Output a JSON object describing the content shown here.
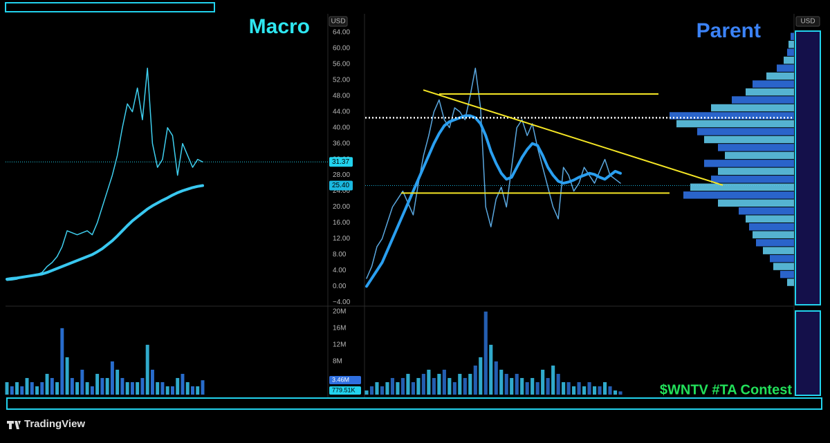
{
  "chart_data": [
    {
      "type": "line",
      "title": "Macro",
      "title_color": "#2ee6f0",
      "currency": "USD",
      "categories": [
        null,
        null,
        null,
        null,
        null,
        null,
        null,
        null,
        null,
        null,
        null,
        null,
        null,
        null,
        null,
        null,
        null,
        null,
        null,
        null,
        null,
        null,
        null,
        null,
        null,
        null,
        null,
        null,
        null,
        null,
        null,
        null,
        null,
        null,
        null,
        null,
        null,
        null,
        null,
        null
      ],
      "series": [
        {
          "color": "#3fd0f0",
          "values": [
            1.5,
            1.6,
            1.8,
            2.2,
            2.5,
            2.8,
            3.0,
            3.5,
            5,
            6,
            7.5,
            10,
            14,
            13.5,
            13,
            13.5,
            14,
            13,
            16,
            20,
            24,
            28,
            33,
            40,
            46,
            44,
            50,
            42,
            55,
            36,
            30,
            32,
            40,
            38,
            28,
            36,
            33,
            30,
            32,
            31.37
          ]
        },
        {
          "color": "#39c8f0",
          "values": [
            1.8,
            2,
            2.1,
            2.3,
            2.5,
            2.7,
            2.9,
            3.1,
            3.5,
            4,
            4.5,
            5,
            5.5,
            6,
            6.5,
            7,
            7.5,
            8,
            8.7,
            9.5,
            10.5,
            11.5,
            12.7,
            14,
            15.3,
            16.5,
            17.5,
            18.5,
            19.5,
            20.3,
            21,
            21.7,
            22.3,
            23,
            23.6,
            24.1,
            24.5,
            24.9,
            25.2,
            25.4
          ]
        }
      ],
      "volume": {
        "color": "#2f7ff0",
        "values": [
          3000000,
          2000000,
          3000000,
          2000000,
          4000000,
          3000000,
          2000000,
          3000000,
          5000000,
          4000000,
          3000000,
          16000000,
          9000000,
          4000000,
          3000000,
          6000000,
          3000000,
          2000000,
          5000000,
          4000000,
          4000000,
          8000000,
          6000000,
          4000000,
          3000000,
          3000000,
          3000000,
          4000000,
          12000000,
          6000000,
          3000000,
          3000000,
          2000000,
          2000000,
          4000000,
          5000000,
          3000000,
          2000000,
          2000000,
          3460000
        ]
      },
      "ylim": [
        -5,
        68.7
      ],
      "yticks": [
        {
          "value": 64,
          "label": "64.00"
        },
        {
          "value": 60,
          "label": "60.00"
        },
        {
          "value": 56,
          "label": "56.00"
        },
        {
          "value": 52,
          "label": "52.00"
        },
        {
          "value": 48,
          "label": "48.00"
        },
        {
          "value": 44,
          "label": "44.00"
        },
        {
          "value": 40,
          "label": "40.00"
        },
        {
          "value": 36,
          "label": "36.00"
        },
        {
          "value": 32,
          "label": "32.00"
        },
        {
          "value": 28,
          "label": "28.00"
        },
        {
          "value": 24,
          "label": "24.00"
        },
        {
          "value": 20,
          "label": "20.00"
        },
        {
          "value": 16,
          "label": "16.00"
        },
        {
          "value": 12,
          "label": "12.00"
        },
        {
          "value": 8,
          "label": "8.00"
        },
        {
          "value": 4,
          "label": "4.00"
        },
        {
          "value": 0,
          "label": "0.00"
        },
        {
          "value": -4,
          "label": "−4.00"
        }
      ],
      "y2lim": [
        0,
        21300000
      ],
      "y2ticks": [
        {
          "value": 20000000,
          "label": "20M"
        },
        {
          "value": 16000000,
          "label": "16M"
        },
        {
          "value": 12000000,
          "label": "12M"
        },
        {
          "value": 8000000,
          "label": "8M"
        }
      ],
      "price_labels": [
        {
          "value": 31.37,
          "color": "#22d3ee"
        },
        {
          "value": {
            "value": 25.4,
            "label": "25.40"
          },
          "color": "#1ab8e0"
        }
      ],
      "volume_labels": [
        {
          "value": {
            "value": 3460000,
            "label": "3.46M"
          },
          "color": "#2f6fe0"
        },
        {
          "value": {
            "value": 779510,
            "label": "779.51K"
          },
          "color": "#22d3ee"
        }
      ]
    },
    {
      "type": "line",
      "title": "Parent",
      "title_color": "#3b82f6",
      "currency": "USD",
      "annotation": "$WNTV #TA Contest",
      "annotation_color": "#22e05a",
      "categories": [
        null,
        null,
        null,
        null,
        null,
        null,
        null,
        null,
        null,
        null,
        null,
        null,
        null,
        null,
        null,
        null,
        null,
        null,
        null,
        null,
        null,
        null,
        null,
        null,
        null,
        null,
        null,
        null,
        null,
        null,
        null,
        null,
        null,
        null,
        null,
        null,
        null,
        null,
        null,
        null,
        null,
        null,
        null,
        null,
        null,
        null,
        null,
        null,
        null,
        null
      ],
      "series": [
        {
          "color": "#5aa8e0",
          "values": [
            2,
            5,
            10,
            12,
            16,
            20,
            22,
            24,
            21,
            18,
            26,
            33,
            38,
            44,
            47,
            42,
            40,
            45,
            44,
            42,
            48,
            55,
            45,
            20,
            15,
            22,
            25,
            20,
            30,
            40,
            42,
            38,
            41,
            35,
            30,
            25,
            20,
            17,
            30,
            28,
            24,
            26,
            30,
            28,
            26,
            29,
            32,
            28,
            27,
            26
          ]
        },
        {
          "color": "#2a9ff0",
          "values": [
            0,
            2,
            4,
            6,
            9,
            12,
            15,
            18,
            21,
            24,
            27,
            30,
            33,
            36,
            38.5,
            40.5,
            41.5,
            42,
            42.5,
            43,
            43,
            42.5,
            41,
            38,
            34,
            31,
            28.5,
            27,
            27.5,
            30,
            32.5,
            34.5,
            36,
            35.5,
            33,
            30,
            28,
            26.5,
            26,
            26.3,
            26.8,
            27.5,
            28,
            28.5,
            28.2,
            27.5,
            27,
            28,
            29,
            28.5
          ]
        }
      ],
      "volume": {
        "color": "#2a6fd0",
        "values": [
          1000000,
          2000000,
          3000000,
          2000000,
          3000000,
          4000000,
          3000000,
          4000000,
          5000000,
          3000000,
          4000000,
          5000000,
          6000000,
          4000000,
          5000000,
          6000000,
          4000000,
          3000000,
          5000000,
          4000000,
          5000000,
          7000000,
          9000000,
          20000000,
          12000000,
          8000000,
          6000000,
          5000000,
          4000000,
          5000000,
          4000000,
          3000000,
          4000000,
          3000000,
          6000000,
          4000000,
          7000000,
          5000000,
          3000000,
          3000000,
          2000000,
          3000000,
          2000000,
          3000000,
          2000000,
          2000000,
          3000000,
          2000000,
          1000000,
          779510
        ]
      },
      "ylim": [
        -5,
        68.7
      ],
      "y2lim": [
        0,
        21300000
      ],
      "levels": [
        {
          "value": 48.5,
          "color": "#f5e625"
        },
        {
          "value": 23.5,
          "color": "#f5e625"
        }
      ],
      "dotted_level": {
        "value": 42.5,
        "color": "#ffffff"
      },
      "trendline": {
        "from": 49.5,
        "to": 25.5,
        "color": "#f5e625"
      },
      "volume_profile": {
        "color": "#2f6fe0",
        "prices": [
          1,
          3,
          5,
          7,
          9,
          11,
          13,
          15,
          17,
          19,
          21,
          23,
          25,
          27,
          29,
          31,
          33,
          35,
          37,
          39,
          41,
          43,
          45,
          47,
          49,
          51,
          53,
          55,
          57,
          59,
          61,
          63
        ],
        "values": [
          10,
          20,
          30,
          35,
          45,
          55,
          60,
          65,
          70,
          80,
          110,
          160,
          150,
          120,
          110,
          130,
          100,
          110,
          130,
          140,
          170,
          180,
          120,
          90,
          70,
          60,
          40,
          25,
          15,
          10,
          8,
          5
        ]
      }
    }
  ],
  "branding": "TradingView"
}
